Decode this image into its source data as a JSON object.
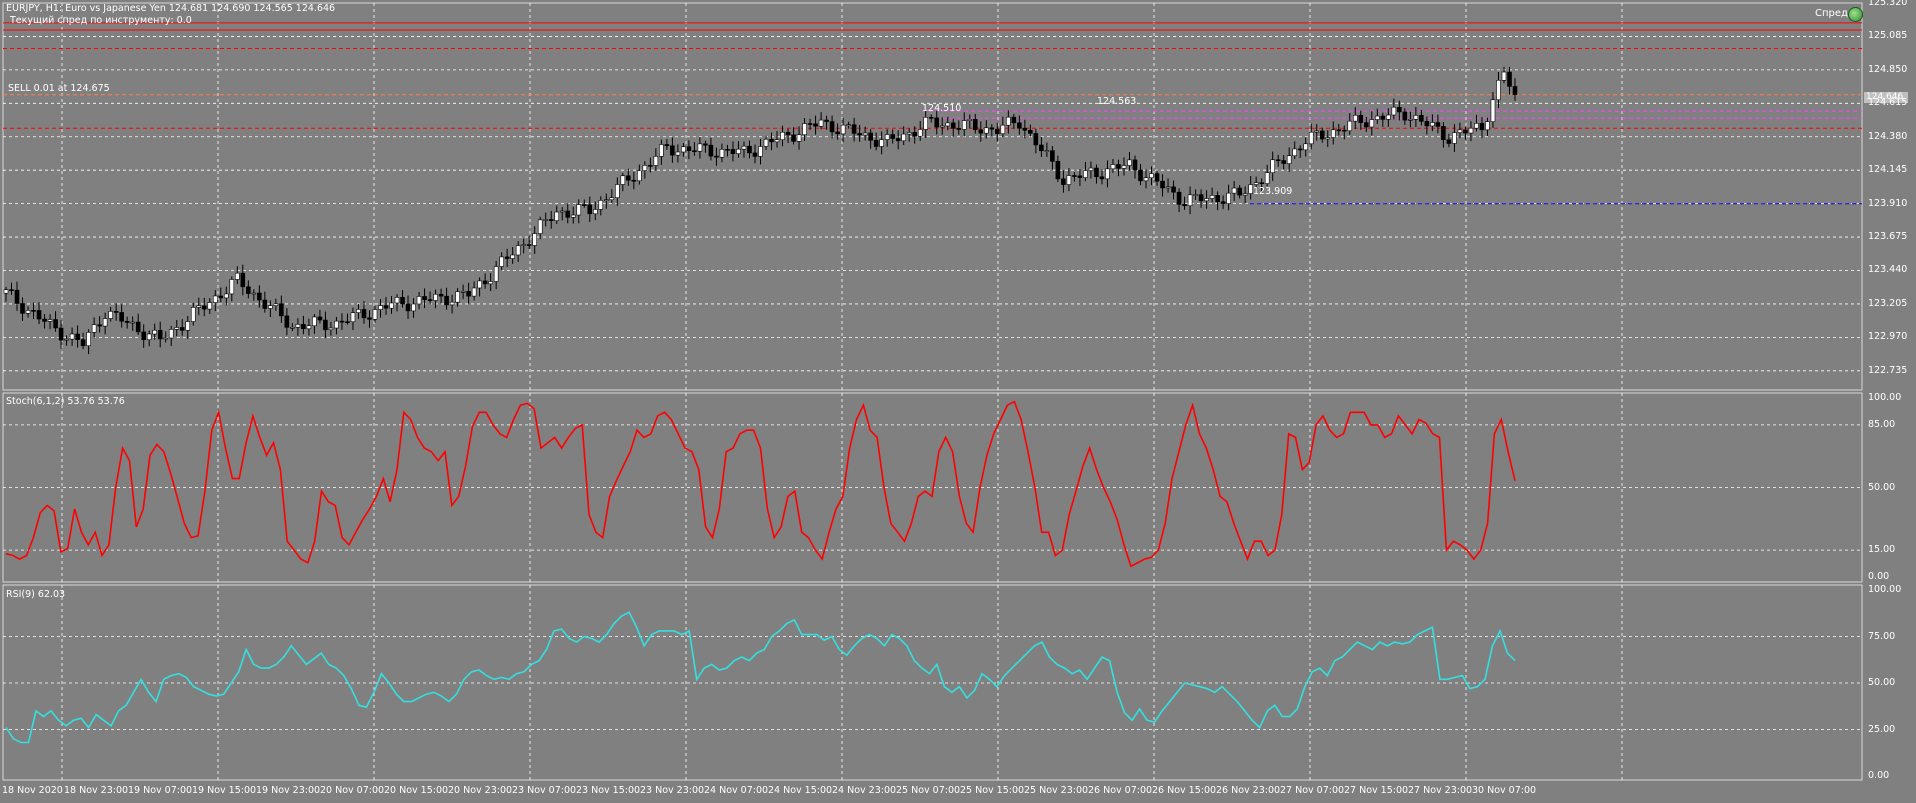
{
  "header": {
    "line1": "EURJPY, H1:  Euro vs Japanese Yen  124.681 124.690 124.565 124.646",
    "line2": "Текущий спред по инструменту: 0.0"
  },
  "spread_label": "Спред",
  "spread_icon": "green-ball-icon",
  "trade_label": "SELL 0.01 at 124.675",
  "current_price_tag": "124.646",
  "annotations": [
    "124.510",
    "124.563",
    "123.909"
  ],
  "colors": {
    "background": "#808080",
    "bull_candle": "#ffffff",
    "bear_candle": "#000000",
    "stoch": "#ff0000",
    "rsi": "#33e0e0",
    "level_red": "#ff0000",
    "level_blue": "#0000ff",
    "level_magenta": "#ff40ff",
    "grid": "#ffffff"
  },
  "chart_data": [
    {
      "type": "candlestick",
      "title": "EURJPY, H1",
      "y_ticks": [
        "125.320",
        "125.085",
        "124.850",
        "124.615",
        "124.380",
        "124.145",
        "123.910",
        "123.675",
        "123.440",
        "123.205",
        "122.970",
        "122.735"
      ],
      "ylim": [
        122.6,
        125.32
      ],
      "horizontal_levels": [
        {
          "value": 125.18,
          "style": "solid",
          "color": "#ff0000"
        },
        {
          "value": 125.13,
          "style": "solid",
          "color": "#ff0000"
        },
        {
          "value": 125.0,
          "style": "dashed",
          "color": "#ff0000"
        },
        {
          "value": 124.675,
          "style": "dashed",
          "color": "#ff8040"
        },
        {
          "value": 124.56,
          "style": "dashed",
          "color": "#ff40ff"
        },
        {
          "value": 124.51,
          "style": "dashed",
          "color": "#ff40ff"
        },
        {
          "value": 124.44,
          "style": "dashed",
          "color": "#ff0000"
        },
        {
          "value": 123.909,
          "style": "dashed",
          "color": "#0000ff"
        }
      ],
      "grid": true
    },
    {
      "type": "line",
      "title": "Stoch(6,1,2) 53.76 53.76",
      "y_ticks": [
        "100.00",
        "85.00",
        "50.00",
        "15.00",
        "0.00"
      ],
      "ylim": [
        0,
        100
      ],
      "levels": [
        85,
        50,
        15
      ],
      "series": [
        {
          "name": "Stoch(6,1,2)",
          "values": [
            13,
            12,
            10,
            12,
            22,
            36,
            40,
            37,
            14,
            16,
            38,
            25,
            18,
            25,
            12,
            18,
            50,
            72,
            65,
            28,
            38,
            68,
            74,
            70,
            58,
            44,
            30,
            22,
            23,
            48,
            82,
            92,
            72,
            55,
            55,
            75,
            90,
            78,
            68,
            75,
            60,
            20,
            15,
            10,
            8,
            20,
            48,
            42,
            40,
            22,
            18,
            25,
            32,
            38,
            45,
            55,
            42,
            60,
            92,
            88,
            78,
            72,
            70,
            65,
            70,
            40,
            45,
            62,
            84,
            92,
            92,
            85,
            80,
            78,
            88,
            96,
            97,
            94,
            72,
            75,
            78,
            72,
            78,
            83,
            85,
            35,
            25,
            22,
            45,
            54,
            62,
            70,
            82,
            78,
            80,
            90,
            92,
            88,
            80,
            72,
            70,
            60,
            28,
            22,
            38,
            70,
            72,
            80,
            82,
            82,
            72,
            38,
            22,
            28,
            45,
            48,
            25,
            22,
            15,
            10,
            25,
            38,
            45,
            72,
            88,
            96,
            82,
            78,
            50,
            30,
            25,
            20,
            30,
            45,
            48,
            45,
            70,
            78,
            70,
            45,
            30,
            25,
            50,
            68,
            80,
            88,
            96,
            98,
            88,
            70,
            50,
            25,
            25,
            12,
            15,
            35,
            48,
            62,
            72,
            60,
            50,
            42,
            32,
            18,
            6,
            8,
            10,
            11,
            15,
            30,
            55,
            70,
            85,
            96,
            80,
            72,
            60,
            45,
            42,
            30,
            20,
            10,
            20,
            20,
            12,
            15,
            35,
            80,
            78,
            60,
            64,
            85,
            90,
            82,
            78,
            80,
            92,
            92,
            92,
            85,
            85,
            78,
            80,
            90,
            85,
            80,
            88,
            86,
            80,
            78,
            15,
            20,
            18,
            15,
            10,
            15,
            30,
            80,
            88,
            70,
            53.76
          ]
        }
      ],
      "grid": true
    },
    {
      "type": "line",
      "title": "RSI(9) 62.03",
      "y_ticks": [
        "100.00",
        "75.00",
        "50.00",
        "25.00",
        "0.00"
      ],
      "ylim": [
        0,
        100
      ],
      "levels": [
        75,
        50,
        25
      ],
      "series": [
        {
          "name": "RSI(9)",
          "values": [
            26,
            20,
            18,
            18,
            35,
            32,
            35,
            30,
            27,
            30,
            31,
            26,
            33,
            30,
            27,
            35,
            38,
            45,
            52,
            45,
            40,
            52,
            54,
            55,
            53,
            48,
            46,
            44,
            43,
            44,
            50,
            56,
            68,
            60,
            58,
            58,
            60,
            64,
            70,
            65,
            60,
            63,
            66,
            60,
            58,
            54,
            47,
            38,
            37,
            45,
            55,
            50,
            44,
            40,
            40,
            42,
            44,
            45,
            43,
            40,
            44,
            52,
            56,
            57,
            54,
            52,
            53,
            52,
            55,
            56,
            60,
            62,
            68,
            78,
            79,
            74,
            72,
            75,
            74,
            72,
            76,
            82,
            86,
            88,
            80,
            70,
            76,
            78,
            78,
            78,
            76,
            78,
            52,
            58,
            60,
            57,
            58,
            62,
            64,
            62,
            66,
            68,
            75,
            78,
            82,
            84,
            76,
            76,
            76,
            73,
            75,
            68,
            65,
            70,
            74,
            76,
            74,
            70,
            76,
            74,
            70,
            62,
            58,
            55,
            60,
            48,
            45,
            48,
            42,
            46,
            55,
            52,
            48,
            54,
            58,
            62,
            66,
            70,
            72,
            64,
            60,
            58,
            55,
            57,
            52,
            58,
            64,
            62,
            45,
            34,
            30,
            36,
            30,
            29,
            35,
            40,
            45,
            50,
            49,
            48,
            47,
            45,
            48,
            44,
            40,
            35,
            30,
            26,
            35,
            38,
            32,
            32,
            36,
            48,
            56,
            58,
            54,
            62,
            64,
            68,
            72,
            70,
            68,
            72,
            70,
            72,
            71,
            72,
            76,
            78,
            80,
            52,
            52,
            53,
            54,
            47,
            48,
            52,
            70,
            78,
            66,
            62.03
          ]
        }
      ],
      "grid": true
    }
  ],
  "x_ticks": [
    "18 Nov 2020",
    "18 Nov 23:00",
    "19 Nov 07:00",
    "19 Nov 15:00",
    "19 Nov 23:00",
    "20 Nov 07:00",
    "20 Nov 15:00",
    "20 Nov 23:00",
    "23 Nov 07:00",
    "23 Nov 15:00",
    "23 Nov 23:00",
    "24 Nov 07:00",
    "24 Nov 15:00",
    "24 Nov 23:00",
    "25 Nov 07:00",
    "25 Nov 15:00",
    "25 Nov 23:00",
    "26 Nov 07:00",
    "26 Nov 15:00",
    "26 Nov 23:00",
    "27 Nov 07:00",
    "27 Nov 15:00",
    "27 Nov 23:00",
    "30 Nov 07:00"
  ]
}
